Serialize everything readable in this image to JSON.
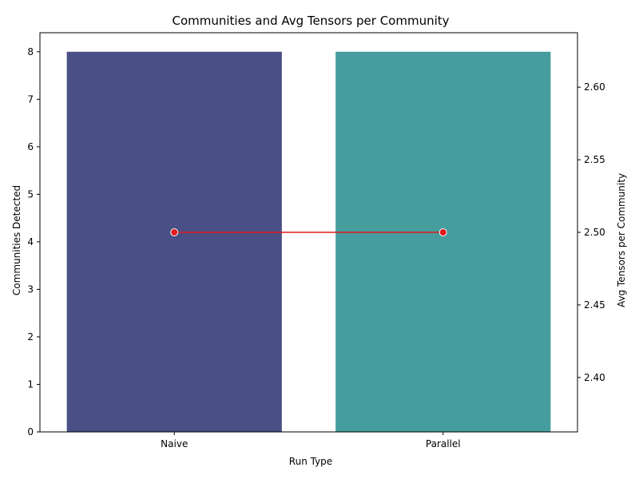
{
  "chart_data": {
    "type": "bar",
    "title": "Communities and Avg Tensors per Community",
    "xlabel": "Run Type",
    "ylabel": "Communities Detected",
    "y2label": "Avg Tensors per Community",
    "categories": [
      "Naive",
      "Parallel"
    ],
    "series": [
      {
        "values": [
          8,
          8
        ],
        "kind": "bar",
        "axis": "left",
        "colors": [
          "#4a5085",
          "#469d9d"
        ]
      },
      {
        "values": [
          2.5,
          2.5
        ],
        "kind": "line",
        "axis": "right",
        "color": "#e31a1c"
      }
    ],
    "ylim": [
      0,
      8.4
    ],
    "y2lim": [
      2.3625,
      2.6375
    ],
    "yticks": [
      0,
      1,
      2,
      3,
      4,
      5,
      6,
      7,
      8
    ],
    "y2ticks": [
      "2.40",
      "2.45",
      "2.50",
      "2.55",
      "2.60"
    ],
    "grid": false,
    "legend": "none"
  }
}
